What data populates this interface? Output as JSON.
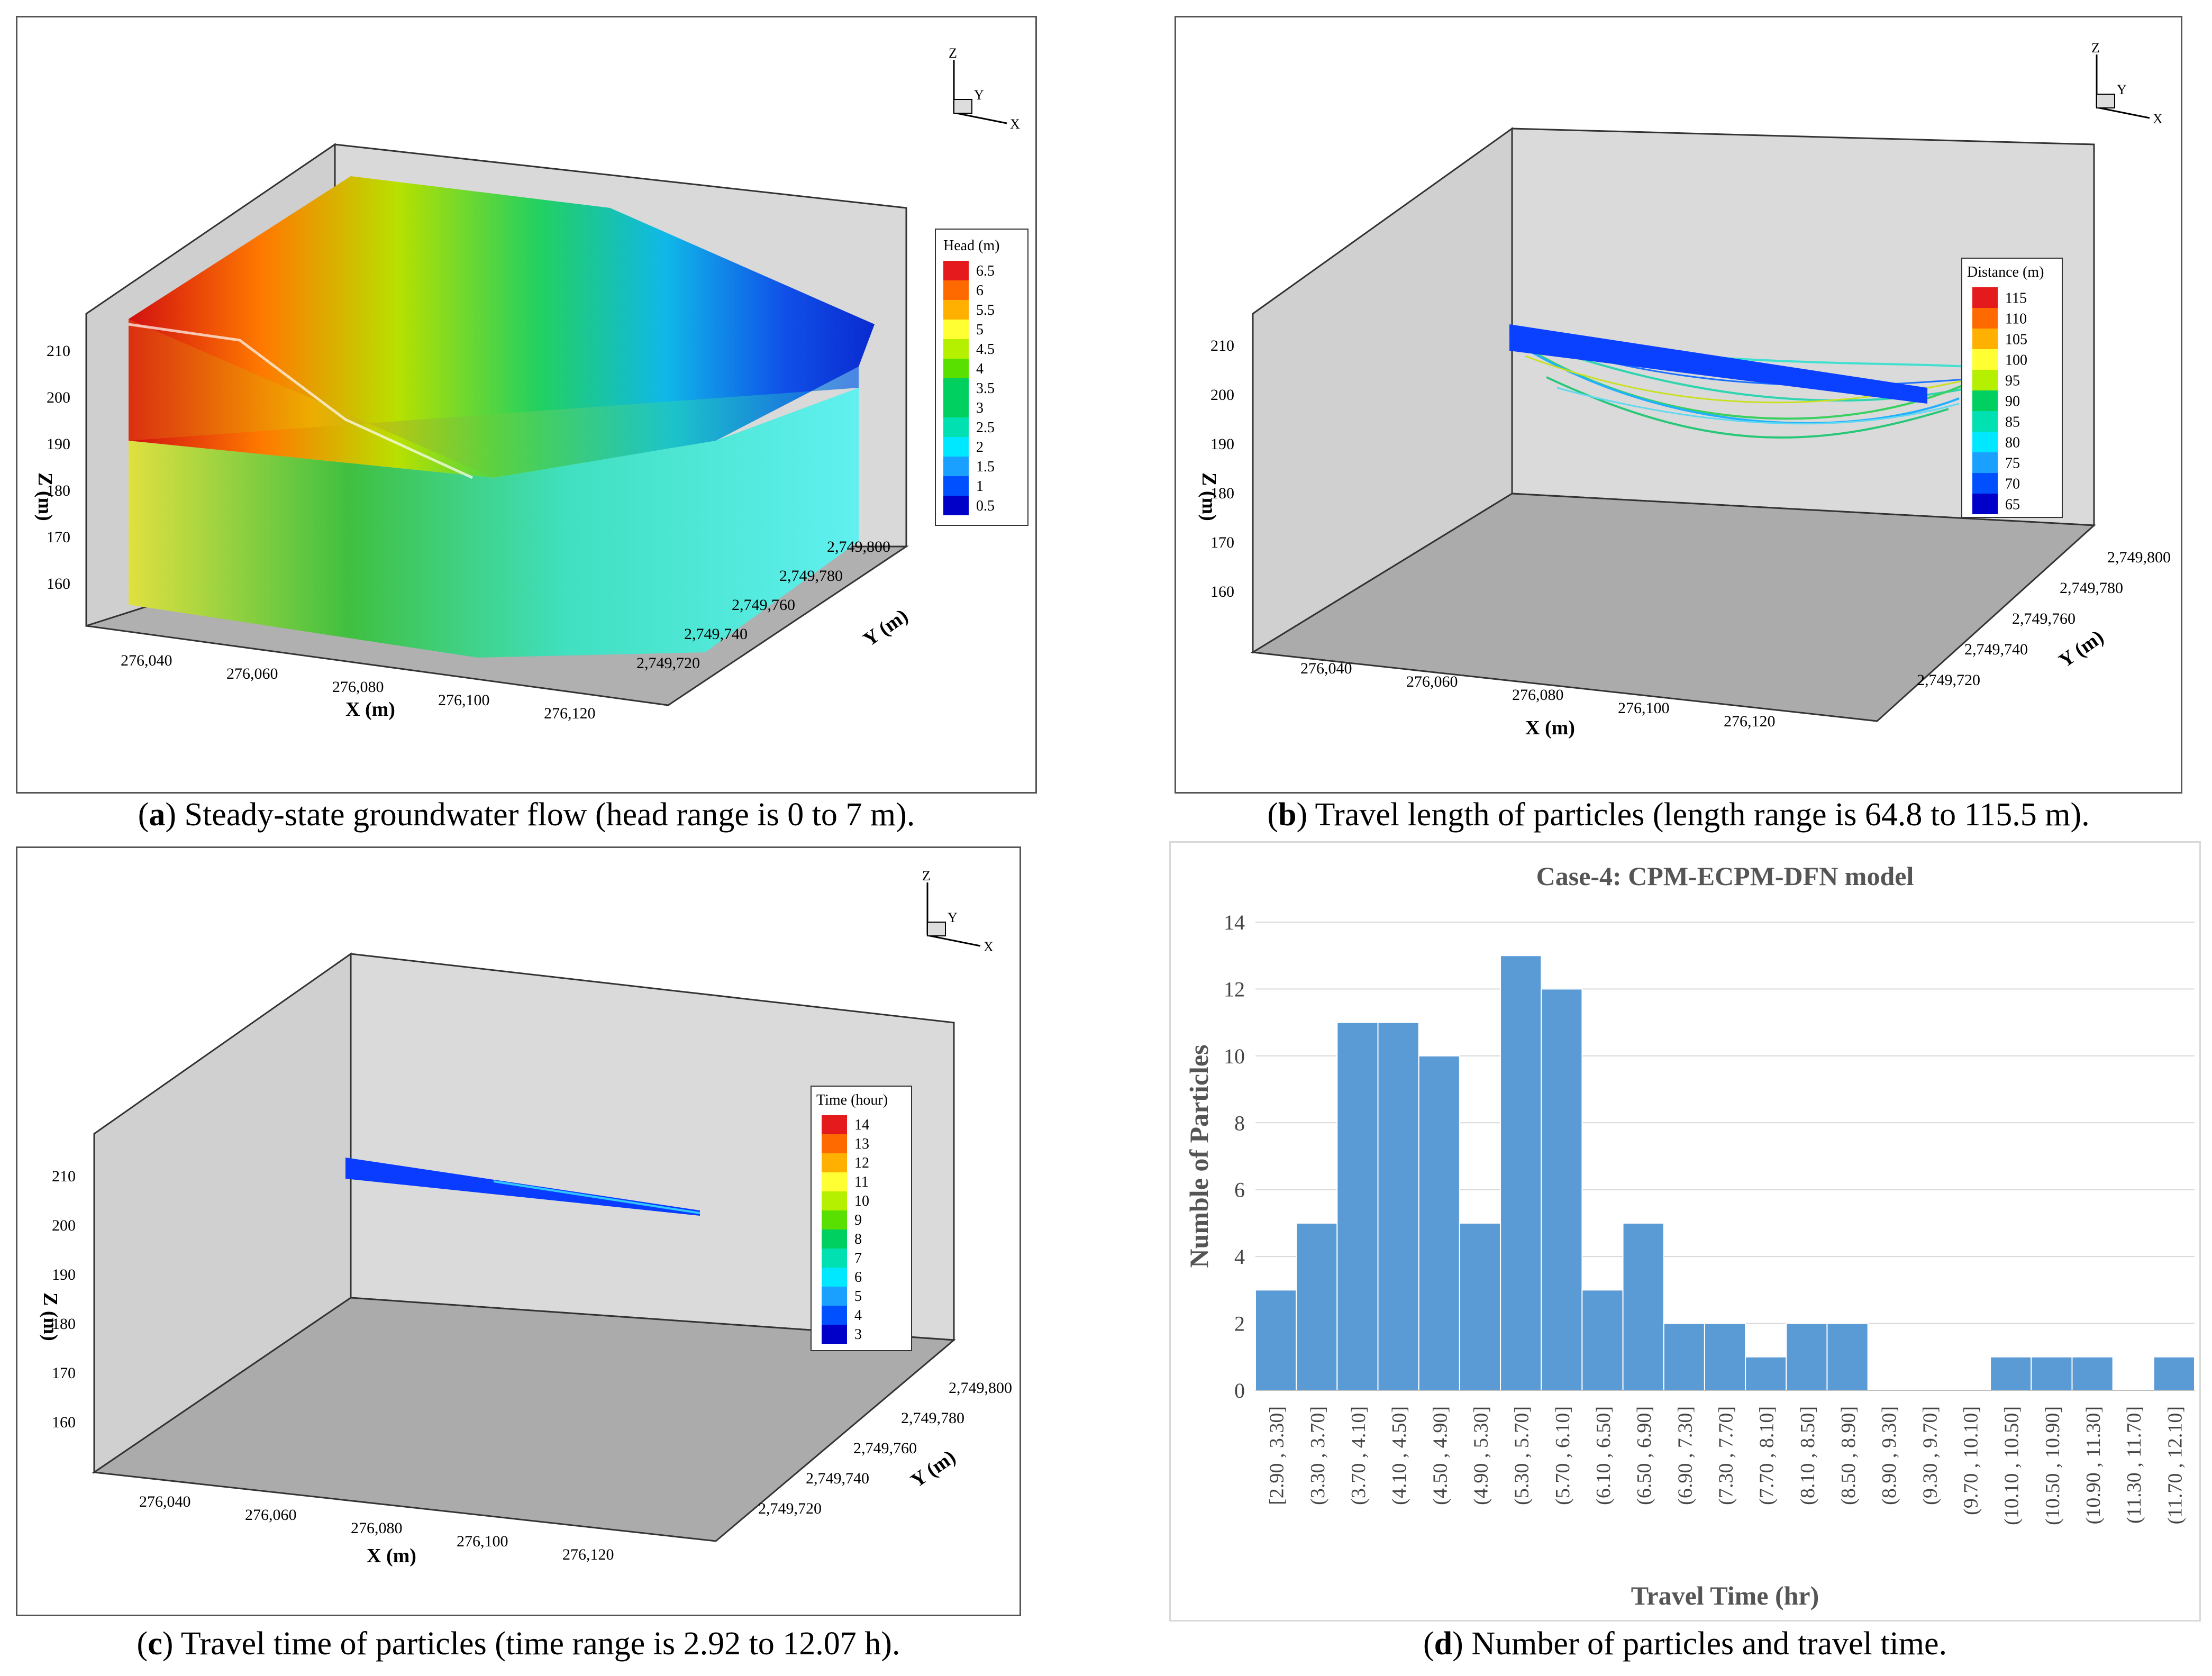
{
  "panels": {
    "a": {
      "letter": "a",
      "caption": "Steady-state groundwater flow (head range is 0 to 7 m).",
      "legend_title": "Head (m)",
      "legend_labels": [
        "6.5",
        "6",
        "5.5",
        "5",
        "4.5",
        "4",
        "3.5",
        "3",
        "2.5",
        "2",
        "1.5",
        "1",
        "0.5"
      ],
      "z_ticks": [
        "210",
        "200",
        "190",
        "180",
        "170",
        "160"
      ],
      "x_ticks": [
        "276,040",
        "276,060",
        "276,080",
        "276,100",
        "276,120"
      ],
      "y_ticks": [
        "2,749,800",
        "2,749,780",
        "2,749,760",
        "2,749,740",
        "2,749,720"
      ],
      "x_label": "X (m)",
      "y_label": "Y (m)",
      "z_label": "Z (m)"
    },
    "b": {
      "letter": "b",
      "caption": "Travel length of particles (length range is 64.8 to 115.5 m).",
      "legend_title": "Distance (m)",
      "legend_labels": [
        "115",
        "110",
        "105",
        "100",
        "95",
        "90",
        "85",
        "80",
        "75",
        "70",
        "65"
      ],
      "z_ticks": [
        "210",
        "200",
        "190",
        "180",
        "170",
        "160"
      ],
      "x_ticks": [
        "276,040",
        "276,060",
        "276,080",
        "276,100",
        "276,120"
      ],
      "y_ticks": [
        "2,749,800",
        "2,749,780",
        "2,749,760",
        "2,749,740",
        "2,749,720"
      ],
      "x_label": "X (m)",
      "y_label": "Y (m)",
      "z_label": "Z (m)"
    },
    "c": {
      "letter": "c",
      "caption": "Travel time of particles (time range is 2.92 to 12.07 h).",
      "legend_title": "Time (hour)",
      "legend_labels": [
        "14",
        "13",
        "12",
        "11",
        "10",
        "9",
        "8",
        "7",
        "6",
        "5",
        "4",
        "3"
      ],
      "z_ticks": [
        "210",
        "200",
        "190",
        "180",
        "170",
        "160"
      ],
      "x_ticks": [
        "276,040",
        "276,060",
        "276,080",
        "276,100",
        "276,120"
      ],
      "y_ticks": [
        "2,749,800",
        "2,749,780",
        "2,749,760",
        "2,749,740",
        "2,749,720"
      ],
      "x_label": "X (m)",
      "y_label": "Y (m)",
      "z_label": "Z (m)"
    },
    "d": {
      "letter": "d",
      "caption": "Number of particles and travel time."
    }
  },
  "axis_triad": {
    "x": "X",
    "y": "Y",
    "z": "Z"
  },
  "colors": {
    "bar": "#5b9bd5",
    "gray_pane": "#d9d9d9",
    "floor": "#aaaaaa",
    "legend_scale": [
      "#e41a1c",
      "#ff6a00",
      "#ffb000",
      "#ffff33",
      "#b4f000",
      "#59e000",
      "#00d060",
      "#00e0b0",
      "#00e8ff",
      "#1aa0ff",
      "#0050ff",
      "#0000c8"
    ]
  },
  "chart_data": {
    "type": "bar",
    "title": "Case-4: CPM-ECPM-DFN model",
    "xlabel": "Travel Time (hr)",
    "ylabel": "Numble of Particles",
    "ylim": [
      0,
      14
    ],
    "yticks": [
      "0",
      "2",
      "4",
      "6",
      "8",
      "10",
      "12",
      "14"
    ],
    "grid": true,
    "categories": [
      "[2.90 , 3.30]",
      "(3.30 , 3.70]",
      "(3.70 , 4.10]",
      "(4.10 , 4.50]",
      "(4.50 , 4.90]",
      "(4.90 , 5.30]",
      "(5.30 , 5.70]",
      "(5.70 , 6.10]",
      "(6.10 , 6.50]",
      "(6.50 , 6.90]",
      "(6.90 , 7.30]",
      "(7.30 , 7.70]",
      "(7.70 , 8.10]",
      "(8.10 , 8.50]",
      "(8.50 , 8.90]",
      "(8.90 , 9.30]",
      "(9.30 , 9.70]",
      "(9.70 , 10.10]",
      "(10.10 , 10.50]",
      "(10.50 , 10.90]",
      "(10.90 , 11.30]",
      "(11.30 , 11.70]",
      "(11.70 , 12.10]"
    ],
    "values": [
      3,
      5,
      11,
      11,
      10,
      5,
      13,
      12,
      3,
      5,
      2,
      2,
      1,
      2,
      2,
      0,
      0,
      0,
      1,
      1,
      1,
      0,
      1
    ]
  }
}
